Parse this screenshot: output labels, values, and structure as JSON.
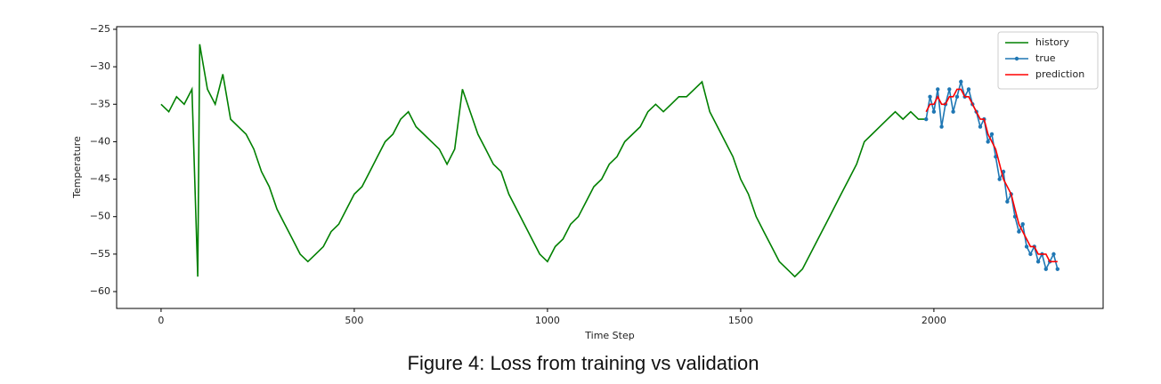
{
  "chart_data": {
    "type": "line",
    "caption": "Figure 4: Loss from training vs validation",
    "xlabel": "Time Step",
    "ylabel": "Temperature",
    "xlim": [
      -115,
      2438
    ],
    "ylim": [
      -62.25,
      -24.65
    ],
    "xticks": [
      0,
      500,
      1000,
      1500,
      2000
    ],
    "yticks": [
      {
        "value": -25,
        "label": "−25"
      },
      {
        "value": -30,
        "label": "−30"
      },
      {
        "value": -35,
        "label": "−35"
      },
      {
        "value": -40,
        "label": "−40"
      },
      {
        "value": -45,
        "label": "−45"
      },
      {
        "value": -50,
        "label": "−50"
      },
      {
        "value": -55,
        "label": "−55"
      },
      {
        "value": -60,
        "label": "−60"
      }
    ],
    "legend": "upper right",
    "series": [
      {
        "name": "history",
        "color": "#008000",
        "markers": false,
        "x": [
          0,
          20,
          40,
          60,
          80,
          95,
          100,
          120,
          140,
          160,
          180,
          200,
          220,
          240,
          260,
          280,
          300,
          320,
          340,
          360,
          380,
          400,
          420,
          440,
          460,
          480,
          500,
          520,
          540,
          560,
          580,
          600,
          620,
          640,
          660,
          680,
          700,
          720,
          740,
          760,
          780,
          800,
          820,
          840,
          860,
          880,
          900,
          920,
          940,
          960,
          980,
          1000,
          1020,
          1040,
          1060,
          1080,
          1100,
          1120,
          1140,
          1160,
          1180,
          1200,
          1220,
          1240,
          1260,
          1280,
          1300,
          1320,
          1340,
          1360,
          1380,
          1400,
          1420,
          1440,
          1460,
          1480,
          1500,
          1520,
          1540,
          1560,
          1580,
          1600,
          1620,
          1640,
          1660,
          1680,
          1700,
          1720,
          1740,
          1760,
          1780,
          1800,
          1820,
          1840,
          1860,
          1880,
          1900,
          1920,
          1940,
          1960,
          1980
        ],
        "values": [
          -35,
          -36,
          -34,
          -35,
          -33,
          -58,
          -27,
          -33,
          -35,
          -31,
          -37,
          -38,
          -39,
          -41,
          -44,
          -46,
          -49,
          -51,
          -53,
          -55,
          -56,
          -55,
          -54,
          -52,
          -51,
          -49,
          -47,
          -46,
          -44,
          -42,
          -40,
          -39,
          -37,
          -36,
          -38,
          -39,
          -40,
          -41,
          -43,
          -41,
          -33,
          -36,
          -39,
          -41,
          -43,
          -44,
          -47,
          -49,
          -51,
          -53,
          -55,
          -56,
          -54,
          -53,
          -51,
          -50,
          -48,
          -46,
          -45,
          -43,
          -42,
          -40,
          -39,
          -38,
          -36,
          -35,
          -36,
          -35,
          -34,
          -34,
          -33,
          -32,
          -36,
          -38,
          -40,
          -42,
          -45,
          -47,
          -50,
          -52,
          -54,
          -56,
          -57,
          -58,
          -57,
          -55,
          -53,
          -51,
          -49,
          -47,
          -45,
          -43,
          -40,
          -39,
          -38,
          -37,
          -36,
          -37,
          -36,
          -37,
          -37
        ]
      },
      {
        "name": "true",
        "color": "#1f77b4",
        "markers": true,
        "x": [
          1980,
          1990,
          2000,
          2010,
          2020,
          2030,
          2040,
          2050,
          2060,
          2070,
          2080,
          2090,
          2100,
          2110,
          2120,
          2130,
          2140,
          2150,
          2160,
          2170,
          2180,
          2190,
          2200,
          2210,
          2220,
          2230,
          2240,
          2250,
          2260,
          2270,
          2280,
          2290,
          2300,
          2310,
          2320
        ],
        "values": [
          -37,
          -34,
          -36,
          -33,
          -38,
          -35,
          -33,
          -36,
          -34,
          -32,
          -34,
          -33,
          -35,
          -36,
          -38,
          -37,
          -40,
          -39,
          -42,
          -45,
          -44,
          -48,
          -47,
          -50,
          -52,
          -51,
          -54,
          -55,
          -54,
          -56,
          -55,
          -57,
          -56,
          -55,
          -57
        ]
      },
      {
        "name": "prediction",
        "color": "#ff0000",
        "markers": false,
        "x": [
          1980,
          1990,
          2000,
          2010,
          2020,
          2030,
          2040,
          2050,
          2060,
          2070,
          2080,
          2090,
          2100,
          2110,
          2120,
          2130,
          2140,
          2150,
          2160,
          2170,
          2180,
          2190,
          2200,
          2210,
          2220,
          2230,
          2240,
          2250,
          2260,
          2270,
          2280,
          2290,
          2300,
          2310,
          2320
        ],
        "values": [
          -36,
          -35,
          -35,
          -34,
          -35,
          -35,
          -34,
          -34,
          -33,
          -33,
          -34,
          -34,
          -35,
          -36,
          -37,
          -37,
          -39,
          -40,
          -41,
          -43,
          -45,
          -46,
          -47,
          -49,
          -51,
          -52,
          -53,
          -54,
          -54,
          -55,
          -55,
          -55,
          -56,
          -56,
          -56
        ]
      }
    ]
  }
}
